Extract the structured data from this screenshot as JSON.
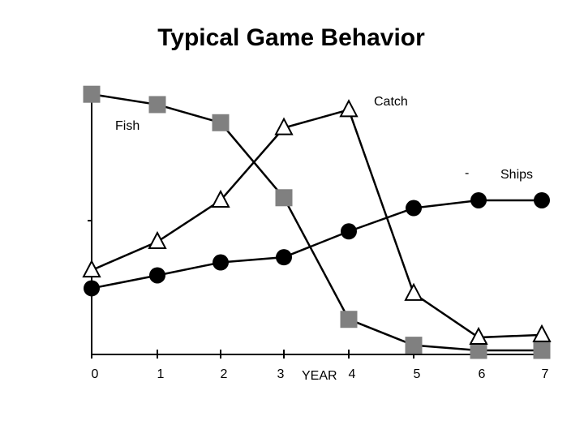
{
  "chart_data": {
    "type": "line",
    "title": "Typical Game Behavior",
    "xlabel": "YEAR",
    "ylabel": "",
    "x": [
      0,
      1,
      2,
      3,
      4,
      5,
      6,
      7
    ],
    "xlim": [
      0,
      7
    ],
    "ylim": [
      0,
      100
    ],
    "grid": false,
    "series": [
      {
        "name": "Fish",
        "marker": "square",
        "color": "#808080",
        "values": [
          99,
          95,
          88,
          59,
          12,
          2,
          0,
          0
        ]
      },
      {
        "name": "Catch",
        "marker": "triangle",
        "color": "#ffffff",
        "values": [
          31,
          42,
          58,
          86,
          93,
          22,
          5,
          6
        ]
      },
      {
        "name": "Ships",
        "marker": "circle",
        "color": "#000000",
        "values": [
          24,
          29,
          34,
          36,
          46,
          55,
          58,
          58
        ]
      }
    ],
    "annotations": [
      "-"
    ]
  }
}
